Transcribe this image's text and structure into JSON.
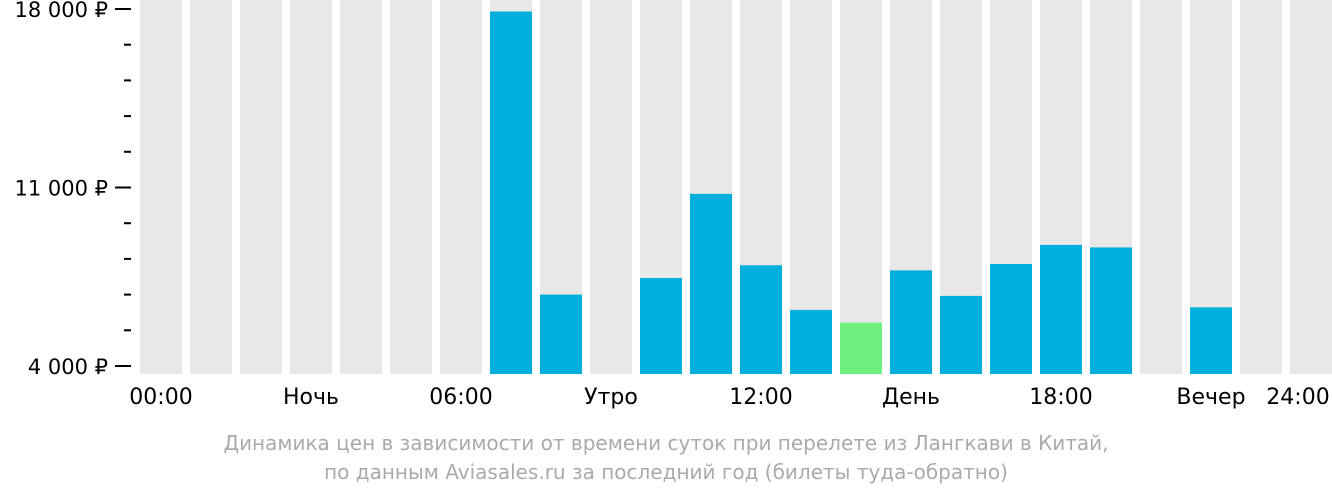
{
  "chart_data": {
    "type": "bar",
    "categories": [
      "00",
      "01",
      "02",
      "03",
      "04",
      "05",
      "06",
      "07",
      "08",
      "09",
      "10",
      "11",
      "12",
      "13",
      "14",
      "15",
      "16",
      "17",
      "18",
      "19",
      "20",
      "21",
      "22",
      "23"
    ],
    "values": [
      null,
      null,
      null,
      null,
      null,
      null,
      null,
      17900,
      6800,
      null,
      7450,
      10750,
      7950,
      6200,
      5700,
      7750,
      6750,
      8000,
      8750,
      8650,
      null,
      6300,
      null,
      null
    ],
    "highlight_index": 14,
    "ylim": [
      4000,
      18000
    ],
    "yticks": [
      {
        "value": 18000,
        "label": "18 000 ₽"
      },
      {
        "value": 11000,
        "label": "11 000 ₽"
      },
      {
        "value": 4000,
        "label": "4 000 ₽"
      }
    ],
    "minor_ticks_between": 4,
    "xticks": [
      {
        "pos": 0,
        "label": "00:00"
      },
      {
        "pos": 3,
        "label": "Ночь"
      },
      {
        "pos": 6,
        "label": "06:00"
      },
      {
        "pos": 9,
        "label": "Утро"
      },
      {
        "pos": 12,
        "label": "12:00"
      },
      {
        "pos": 15,
        "label": "День"
      },
      {
        "pos": 18,
        "label": "18:00"
      },
      {
        "pos": 21,
        "label": "Вечер"
      },
      {
        "pos": 24,
        "label": "24:00"
      }
    ],
    "colors": {
      "bar": "#00b0dc",
      "highlight": "#6ef07f",
      "background_column": "#e8e8e8",
      "axis": "#000000"
    }
  },
  "caption": {
    "line1": "Динамика цен в зависимости от времени суток при перелете из Лангкави в Китай,",
    "line2": "по данным Aviasales.ru за последний год (билеты туда-обратно)"
  }
}
